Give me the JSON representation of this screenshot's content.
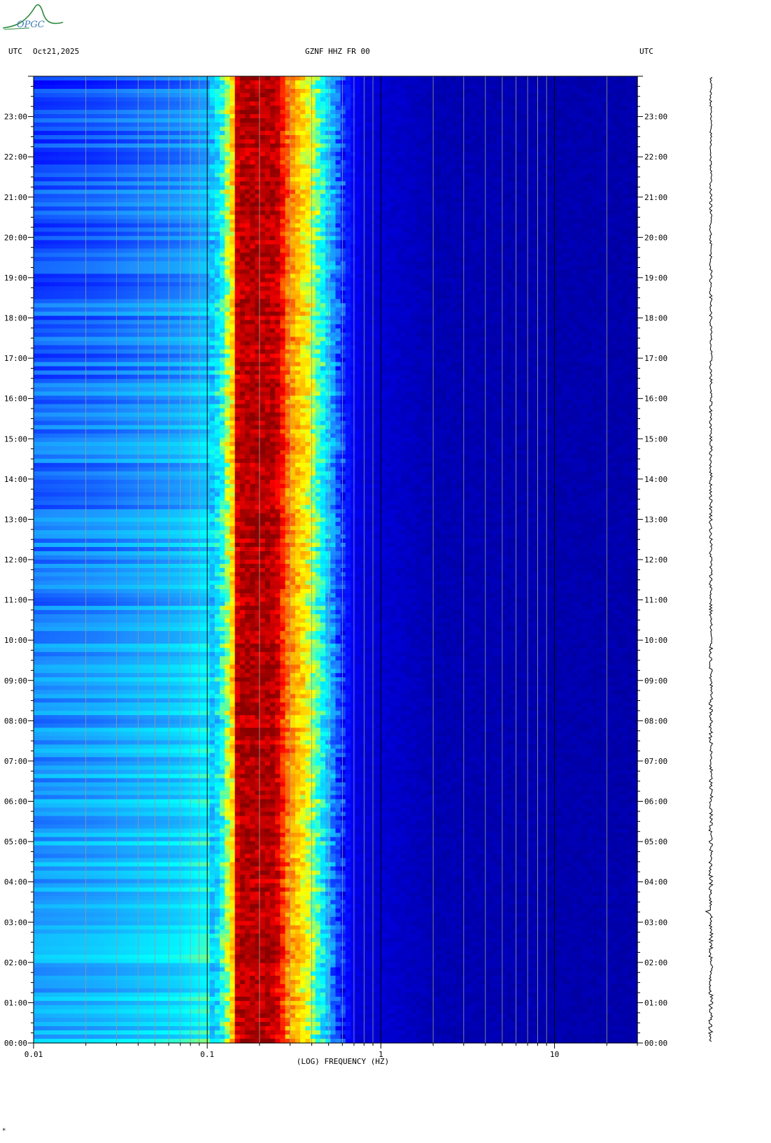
{
  "header": {
    "left_zone": "UTC",
    "date": "Oct21,2025",
    "station": "GZNF HHZ FR 00",
    "right_zone": "UTC"
  },
  "logo": {
    "text": "OPGC",
    "color": "#2c8a3c"
  },
  "footer_mark": "*",
  "chart_data": {
    "type": "heatmap",
    "title": "GZNF HHZ FR 00",
    "xlabel": "(LOG) FREQUENCY (HZ)",
    "x_scale": "log",
    "xlim": [
      0.01,
      30
    ],
    "x_tick_labels": [
      "0.01",
      "0.1",
      "1",
      "10"
    ],
    "y_tick_labels": [
      "00:00",
      "01:00",
      "02:00",
      "03:00",
      "04:00",
      "05:00",
      "06:00",
      "07:00",
      "08:00",
      "09:00",
      "10:00",
      "11:00",
      "12:00",
      "13:00",
      "14:00",
      "15:00",
      "16:00",
      "17:00",
      "18:00",
      "19:00",
      "20:00",
      "21:00",
      "22:00",
      "23:00"
    ],
    "ylim_hours": [
      0,
      24
    ],
    "colormap": [
      "#00008b",
      "#0000ff",
      "#1e90ff",
      "#00ffff",
      "#ffff00",
      "#ff8c00",
      "#ff0000",
      "#8b0000"
    ],
    "dominant_band_hz": [
      0.15,
      0.25
    ],
    "power_profile": [
      {
        "f": 0.01,
        "level": 0.2
      },
      {
        "f": 0.024,
        "level": 0.22
      },
      {
        "f": 0.07,
        "level": 0.27
      },
      {
        "f": 0.1,
        "level": 0.32
      },
      {
        "f": 0.12,
        "level": 0.42
      },
      {
        "f": 0.14,
        "level": 0.62
      },
      {
        "f": 0.15,
        "level": 0.95
      },
      {
        "f": 0.25,
        "level": 0.95
      },
      {
        "f": 0.3,
        "level": 0.72
      },
      {
        "f": 0.4,
        "level": 0.55
      },
      {
        "f": 0.5,
        "level": 0.38
      },
      {
        "f": 0.6,
        "level": 0.2
      },
      {
        "f": 0.8,
        "level": 0.1
      },
      {
        "f": 2,
        "level": 0.05
      },
      {
        "f": 30,
        "level": 0.04
      }
    ],
    "time_trend": "low-frequency band (<0.1 Hz) brighter toward 00:00; microseism band widens toward 00:00"
  },
  "seismogram": {
    "color": "#000000"
  }
}
